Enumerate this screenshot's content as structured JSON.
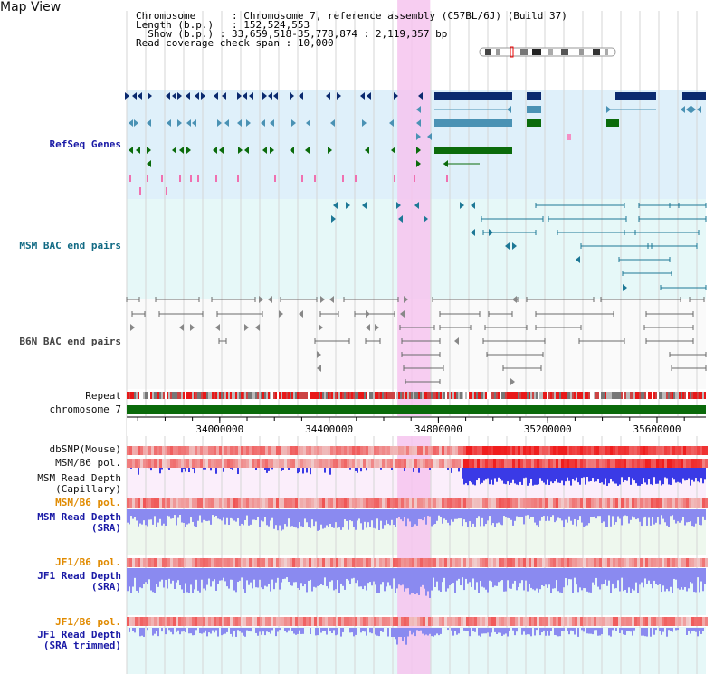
{
  "app": {
    "title": "Map View"
  },
  "header": {
    "chromosome_key": "Chromosome",
    "chromosome_value": "Chromosome 7, reference assembly (C57BL/6J) (Build 37)",
    "length_key": "Length (b.p.)",
    "length_value": "152,524,553",
    "show_key": "Show (b.p.)",
    "show_value": "33,659,518-35,778,874 : 2,119,357 bp",
    "coverage_key": "Read coverage check span",
    "coverage_value": "10,000"
  },
  "tracks": {
    "refseq": "RefSeq Genes",
    "msm_bac": "MSM BAC end pairs",
    "b6n_bac": "B6N BAC end pairs",
    "repeat": "Repeat",
    "chromosome": "chromosome 7",
    "dbsnp": "dbSNP(Mouse)",
    "msm_pol_1": "MSM/B6 pol.",
    "msm_depth_cap_1": "MSM Read Depth",
    "msm_depth_cap_2": "(Capillary)",
    "msm_pol_2": "MSM/B6 pol.",
    "msm_depth_sra_1": "MSM Read Depth",
    "msm_depth_sra_2": "(SRA)",
    "jf1_pol_1": "JF1/B6 pol.",
    "jf1_depth_sra_1": "JF1 Read Depth",
    "jf1_depth_sra_2": "(SRA)",
    "jf1_pol_2": "JF1/B6 pol.",
    "jf1_depth_trim_1": "JF1 Read Depth",
    "jf1_depth_trim_2": "(SRA trimmed)"
  },
  "axis": {
    "ticks": [
      {
        "pos": 34000000,
        "label": "34000000"
      },
      {
        "pos": 34400000,
        "label": "34400000"
      },
      {
        "pos": 34800000,
        "label": "34800000"
      },
      {
        "pos": 35200000,
        "label": "35200000"
      },
      {
        "pos": 35600000,
        "label": "35600000"
      }
    ],
    "range_start": 33659518,
    "range_end": 35778874,
    "highlight_start": 34650000,
    "highlight_end": 34770000
  },
  "colors": {
    "gene_dark": "#0b2a6f",
    "gene_mid": "#4a92b4",
    "gene_green": "#0b6b0b",
    "bac_teal": "#1d7896",
    "bac_gray": "#6a6a6a",
    "depth_blue": "#3a3ae6",
    "depth_light": "#8a8af0",
    "snp_red": "#ee2222",
    "highlight": "#f6c4ef",
    "chrom_green": "#0a6a0a"
  }
}
